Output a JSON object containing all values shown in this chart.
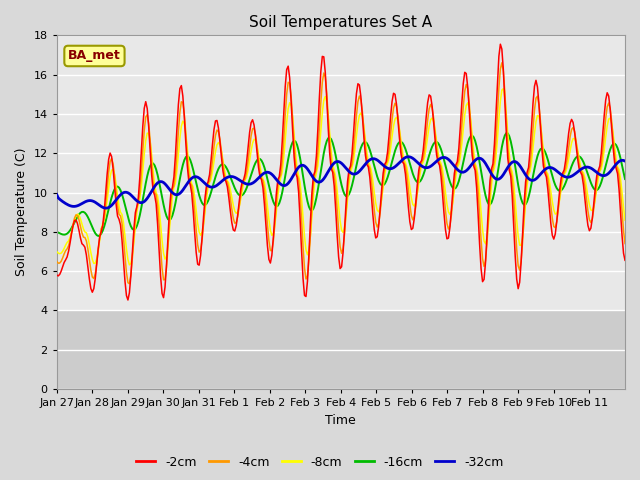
{
  "title": "Soil Temperatures Set A",
  "xlabel": "Time",
  "ylabel": "Soil Temperature (C)",
  "ylim": [
    0,
    18
  ],
  "yticks": [
    0,
    2,
    4,
    6,
    8,
    10,
    12,
    14,
    16,
    18
  ],
  "xtick_labels": [
    "Jan 27",
    "Jan 28",
    "Jan 29",
    "Jan 30",
    "Jan 31",
    "Feb 1",
    "Feb 2",
    "Feb 3",
    "Feb 4",
    "Feb 5",
    "Feb 6",
    "Feb 7",
    "Feb 8",
    "Feb 9",
    "Feb 10",
    "Feb 11"
  ],
  "colors": {
    "-2cm": "#ff0000",
    "-4cm": "#ff9900",
    "-8cm": "#ffff00",
    "-16cm": "#00bb00",
    "-32cm": "#0000cc"
  },
  "annotation_text": "BA_met",
  "annotation_bg": "#ffff99",
  "annotation_border": "#999900",
  "fig_bg": "#d9d9d9",
  "plot_bg_upper": "#e8e8e8",
  "plot_bg_lower": "#cccccc",
  "title_fontsize": 11,
  "axis_fontsize": 9,
  "tick_fontsize": 8,
  "legend_fontsize": 9
}
